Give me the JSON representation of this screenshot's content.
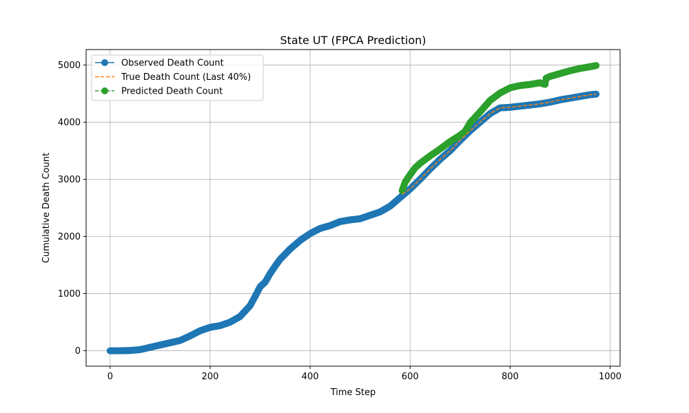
{
  "chart_data": {
    "type": "line",
    "title": "State UT (FPCA Prediction)",
    "xlabel": "Time Step",
    "ylabel": "Cumulative Death Count",
    "xlim": [
      -48,
      1020
    ],
    "ylim": [
      -270,
      5270
    ],
    "xticks": [
      0,
      200,
      400,
      600,
      800,
      1000
    ],
    "yticks": [
      0,
      1000,
      2000,
      3000,
      4000,
      5000
    ],
    "grid": true,
    "legend_position": "top-left",
    "series": [
      {
        "name": "Observed Death Count",
        "color": "#1f77b4",
        "style": "solid-with-markers",
        "x": [
          0,
          20,
          40,
          60,
          80,
          100,
          120,
          140,
          160,
          180,
          200,
          220,
          240,
          260,
          280,
          290,
          300,
          310,
          320,
          330,
          340,
          360,
          380,
          400,
          420,
          440,
          460,
          480,
          500,
          520,
          540,
          560,
          580,
          600,
          620,
          640,
          660,
          680,
          700,
          720,
          740,
          760,
          780,
          800,
          820,
          840,
          860,
          880,
          900,
          920,
          940,
          960,
          972
        ],
        "y": [
          0,
          0,
          5,
          20,
          60,
          100,
          140,
          180,
          260,
          350,
          410,
          440,
          500,
          600,
          790,
          950,
          1120,
          1200,
          1350,
          1480,
          1600,
          1780,
          1930,
          2050,
          2140,
          2190,
          2260,
          2290,
          2310,
          2370,
          2430,
          2530,
          2680,
          2830,
          3000,
          3180,
          3350,
          3500,
          3680,
          3850,
          4000,
          4150,
          4250,
          4260,
          4280,
          4300,
          4320,
          4350,
          4390,
          4420,
          4450,
          4480,
          4490
        ]
      },
      {
        "name": "True Death Count (Last 40%)",
        "color": "#ff7f0e",
        "style": "dashed",
        "x": [
          584,
          600,
          620,
          640,
          660,
          680,
          700,
          720,
          740,
          760,
          780,
          800,
          820,
          840,
          860,
          880,
          900,
          920,
          940,
          960,
          972
        ],
        "y": [
          2740,
          2830,
          3000,
          3180,
          3350,
          3500,
          3680,
          3850,
          4000,
          4150,
          4250,
          4260,
          4280,
          4300,
          4320,
          4350,
          4390,
          4420,
          4450,
          4480,
          4490
        ]
      },
      {
        "name": "Predicted Death Count",
        "color": "#2ca02c",
        "style": "dashed-with-markers",
        "x": [
          584,
          590,
          600,
          610,
          620,
          640,
          660,
          680,
          700,
          710,
          720,
          740,
          760,
          780,
          800,
          820,
          840,
          860,
          870,
          872,
          880,
          900,
          920,
          940,
          960,
          972
        ],
        "y": [
          2800,
          2950,
          3080,
          3200,
          3280,
          3410,
          3530,
          3660,
          3770,
          3840,
          3990,
          4180,
          4380,
          4510,
          4600,
          4640,
          4660,
          4690,
          4660,
          4770,
          4800,
          4850,
          4900,
          4940,
          4970,
          4990
        ]
      }
    ]
  }
}
